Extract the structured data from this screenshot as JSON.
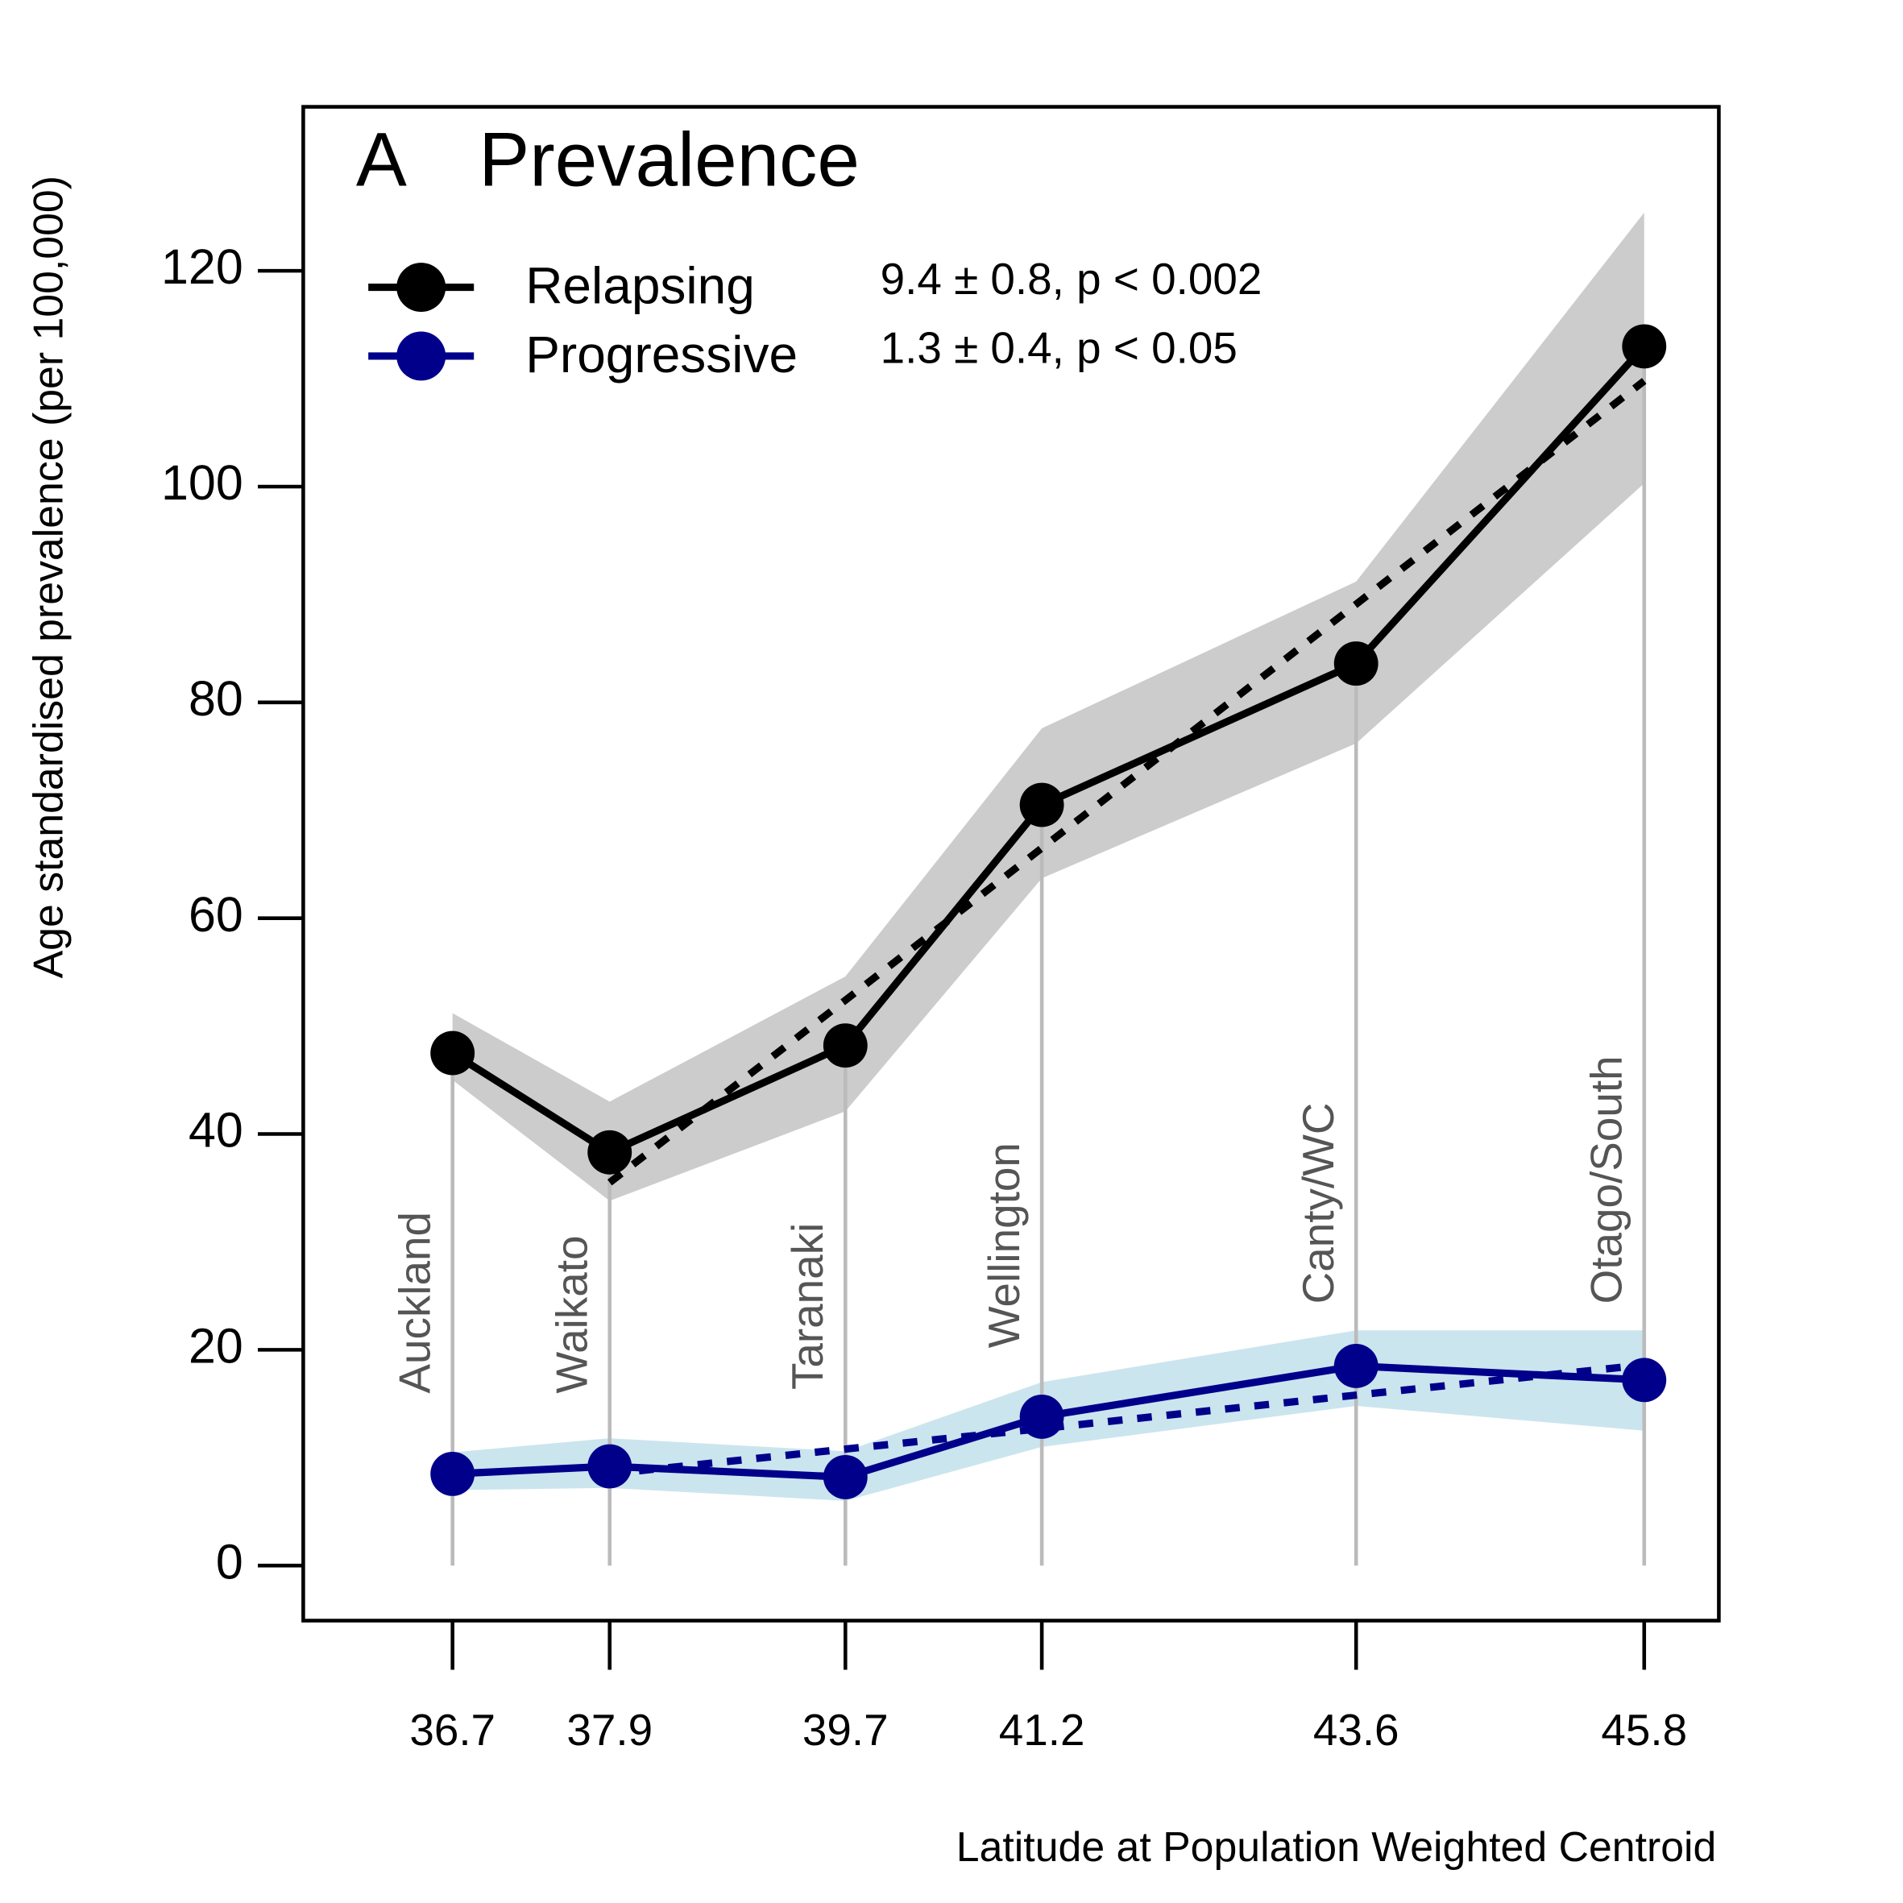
{
  "chart_data": {
    "type": "line",
    "panel_label": "A",
    "title": "Prevalence",
    "x_label": "Latitude at Population Weighted Centroid",
    "y_label": "Age standardised prevalence (per 100,000)",
    "x": [
      36.7,
      37.9,
      39.7,
      41.2,
      43.6,
      45.8
    ],
    "categories": [
      "Auckland",
      "Waikato",
      "Taranaki",
      "Wellington",
      "Canty/WC",
      "Otago/South"
    ],
    "xlim": [
      35.56,
      46.37
    ],
    "xticks": [
      36.7,
      37.9,
      39.7,
      41.2,
      43.6,
      45.8
    ],
    "ylim": [
      -5.1,
      135.2
    ],
    "yticks": [
      0,
      20,
      40,
      60,
      80,
      100,
      120
    ],
    "series": [
      {
        "name": "Relapsing",
        "color": "#000000",
        "band_color": "#cccccc",
        "stat": "9.4 ± 0.8, p < 0.002",
        "values": [
          47.5,
          38.3,
          48.2,
          70.5,
          83.6,
          113
        ],
        "band_lower": [
          45,
          33.8,
          42.1,
          63.7,
          76.2,
          100.3
        ],
        "band_upper": [
          51.2,
          43,
          54.6,
          77.6,
          91.2,
          125.4
        ],
        "fit": [
          null,
          35.5,
          52.4,
          66.5,
          89.1,
          109.8
        ]
      },
      {
        "name": "Progressive",
        "color": "#00008b",
        "band_color": "#cbe5ee",
        "stat": "1.3 ± 0.4, p < 0.05",
        "values": [
          8.5,
          9.2,
          8.2,
          13.8,
          18.5,
          17.2
        ],
        "band_lower": [
          7,
          7.2,
          6,
          11,
          14.8,
          12.5
        ],
        "band_upper": [
          10.5,
          11.8,
          10.6,
          17,
          21.8,
          21.8
        ],
        "fit": [
          null,
          8.5,
          10.8,
          12.7,
          15.8,
          18.6
        ]
      }
    ]
  }
}
